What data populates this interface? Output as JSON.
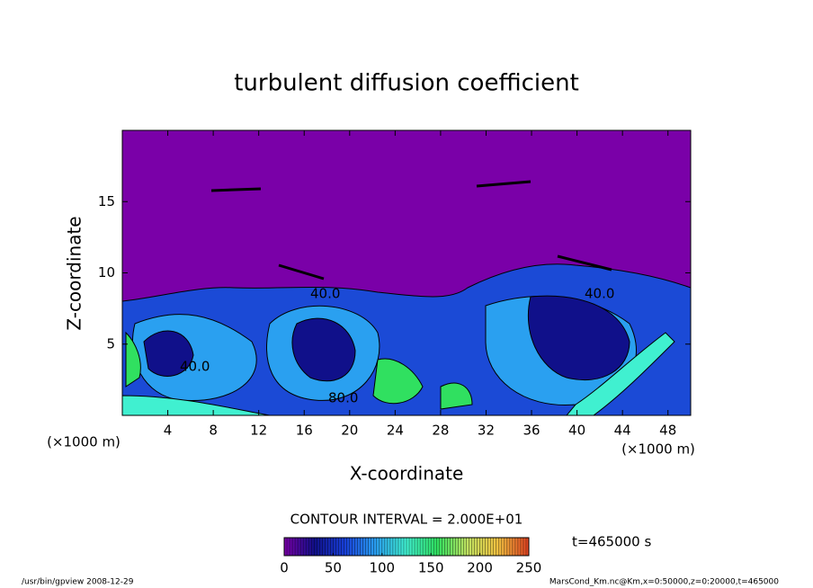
{
  "chart_data": {
    "type": "contour",
    "title": "turbulent diffusion coefficient",
    "x_label": "X-coordinate",
    "y_label": "Z-coordinate",
    "x_unit": "(×1000 m)",
    "y_unit": "(×1000 m)",
    "xlim": [
      0,
      50
    ],
    "xticks": [
      4,
      8,
      12,
      16,
      20,
      24,
      28,
      32,
      36,
      40,
      44,
      48
    ],
    "ylim": [
      0,
      20
    ],
    "yticks": [
      5,
      10,
      15
    ],
    "contour_interval_label": "CONTOUR INTERVAL = 2.000E+01",
    "contour_labels": [
      "40.0",
      "40.0",
      "40.0",
      "80.0"
    ],
    "time_label": "t=465000 s",
    "clim": [
      0,
      250
    ],
    "cticks": [
      0,
      50,
      100,
      150,
      200,
      250
    ],
    "colormap": [
      "#7a00a8",
      "#10108a",
      "#1840d8",
      "#2aa0f0",
      "#40f0d0",
      "#30e060",
      "#c0e060",
      "#f0c040",
      "#e04020"
    ],
    "footer_left": "/usr/bin/gpview  2008-12-29",
    "footer_right": "MarsCond_Km.nc@Km,x=0:50000,z=0:20000,t=465000"
  }
}
